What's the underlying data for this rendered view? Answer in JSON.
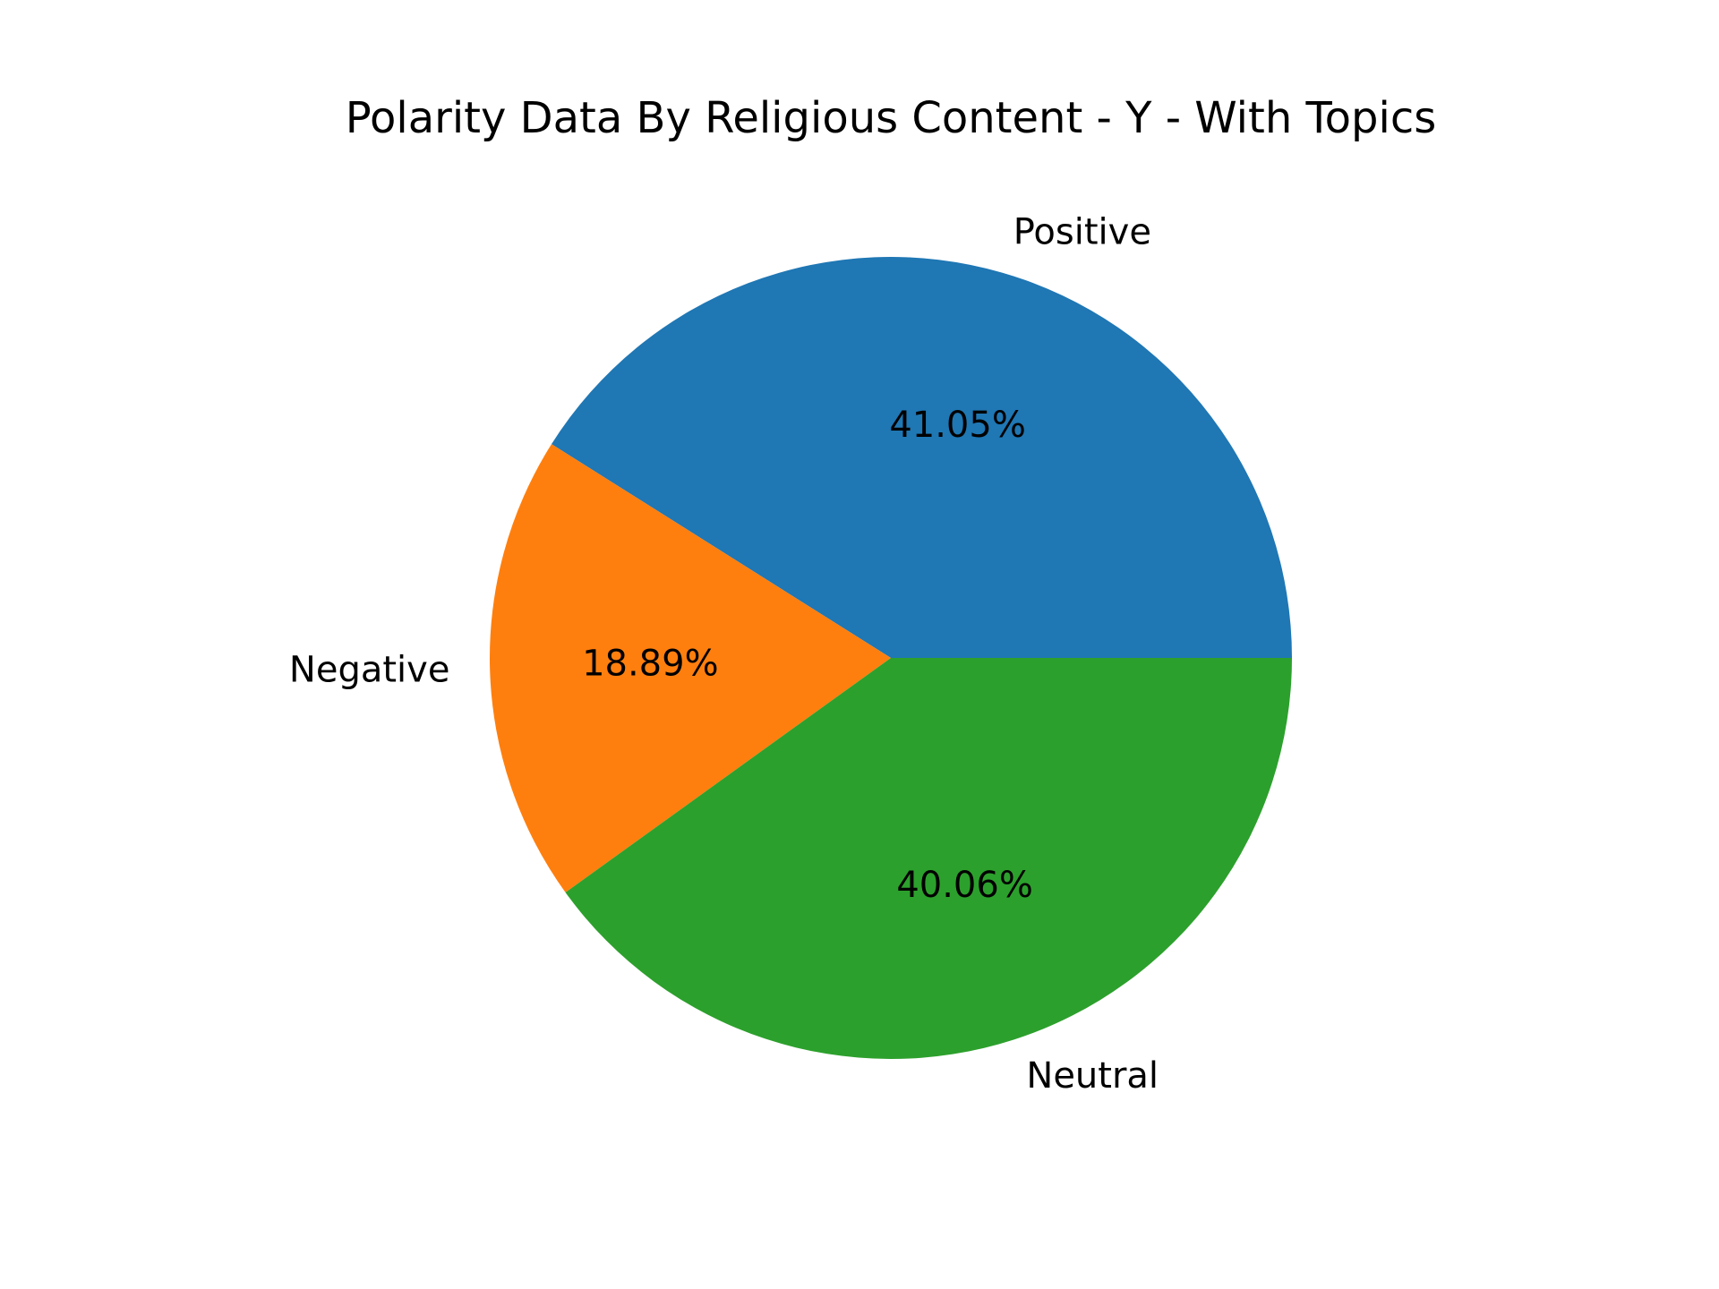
{
  "chart_data": {
    "type": "pie",
    "title": "Polarity Data By Religious Content - Y - With Topics",
    "slices": [
      {
        "label": "Positive",
        "value": 41.05,
        "pct_label": "41.05%",
        "color": "#1f77b4"
      },
      {
        "label": "Negative",
        "value": 18.89,
        "pct_label": "18.89%",
        "color": "#ff7f0e"
      },
      {
        "label": "Neutral",
        "value": 40.06,
        "pct_label": "40.06%",
        "color": "#2ca02c"
      }
    ],
    "start_angle_deg": 0,
    "direction": "counterclockwise",
    "legend": "none"
  }
}
